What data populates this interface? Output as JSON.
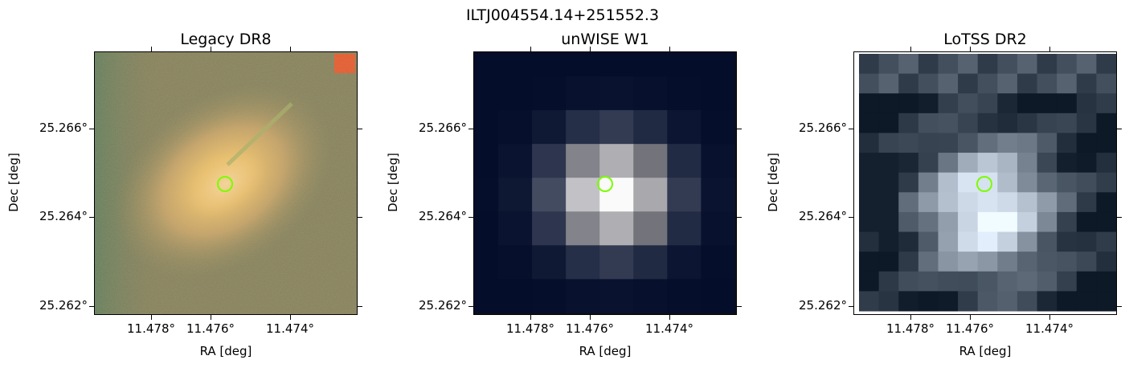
{
  "figure": {
    "suptitle": "ILTJ004554.14+251552.3"
  },
  "panels": [
    {
      "title": "Legacy DR8",
      "xlabel": "RA [deg]",
      "ylabel": "Dec [deg]",
      "xticks": [
        "11.478°",
        "11.476°",
        "11.474°"
      ],
      "yticks": [
        "25.266°",
        "25.264°",
        "25.262°"
      ],
      "marker_color": "#7cfc00"
    },
    {
      "title": "unWISE W1",
      "xlabel": "RA [deg]",
      "ylabel": "Dec [deg]",
      "xticks": [
        "11.478°",
        "11.476°",
        "11.474°"
      ],
      "yticks": [
        "25.266°",
        "25.264°",
        "25.262°"
      ],
      "marker_color": "#7cfc00"
    },
    {
      "title": "LoTSS DR2",
      "xlabel": "RA [deg]",
      "ylabel": "Dec [deg]",
      "xticks": [
        "11.478°",
        "11.476°",
        "11.474°"
      ],
      "yticks": [
        "25.266°",
        "25.264°",
        "25.262°"
      ],
      "marker_color": "#7cfc00"
    }
  ]
}
